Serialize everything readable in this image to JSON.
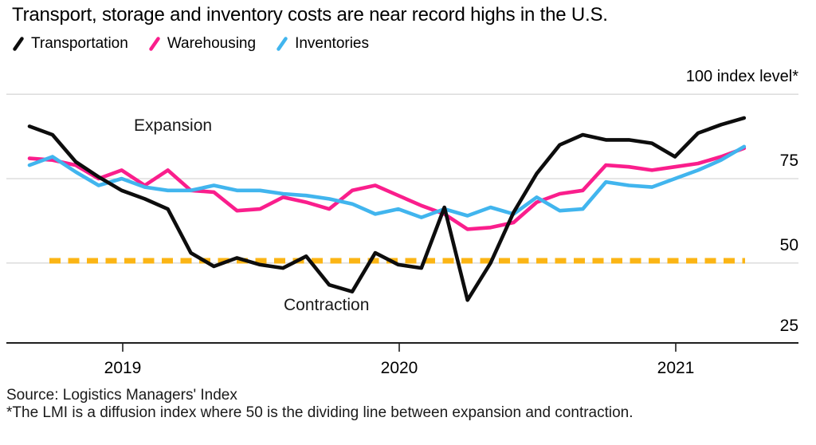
{
  "header": {
    "title": "Transport, storage and inventory costs are near record highs in the U.S."
  },
  "legend": [
    {
      "label": "Transportation",
      "color": "#0d0d0d"
    },
    {
      "label": "Warehousing",
      "color": "#fa1e8c"
    },
    {
      "label": "Inventories",
      "color": "#41b5ee"
    }
  ],
  "axis": {
    "unit_label": "100 index level*",
    "y_ticks": [
      "75",
      "50",
      "25"
    ],
    "x_ticks": [
      "2019",
      "2020",
      "2021"
    ]
  },
  "annotations": {
    "expansion": "Expansion",
    "contraction": "Contraction"
  },
  "footer": {
    "source": "Source: Logistics Managers' Index",
    "footnote": "*The LMI is a diffusion index where 50 is the dividing line between expansion and contraction."
  },
  "chart_data": {
    "type": "line",
    "title": "Transport, storage and inventory costs are near record highs in the U.S.",
    "unit": "index level (diffusion index, 50 = neutral)",
    "x_frequency": "monthly",
    "categories": [
      "2018-09",
      "2018-10",
      "2018-11",
      "2018-12",
      "2019-01",
      "2019-02",
      "2019-03",
      "2019-04",
      "2019-05",
      "2019-06",
      "2019-07",
      "2019-08",
      "2019-09",
      "2019-10",
      "2019-11",
      "2019-12",
      "2020-01",
      "2020-02",
      "2020-03",
      "2020-04",
      "2020-05",
      "2020-06",
      "2020-07",
      "2020-08",
      "2020-09",
      "2020-10",
      "2020-11",
      "2020-12",
      "2021-01",
      "2021-02",
      "2021-03",
      "2021-04"
    ],
    "series": [
      {
        "name": "Transportation",
        "color": "#0d0d0d",
        "values": [
          90.5,
          88,
          80,
          75.5,
          71.5,
          69,
          66,
          53,
          49,
          51.5,
          49.5,
          48.5,
          52,
          43.5,
          41.5,
          53,
          49.5,
          48.5,
          66.5,
          39,
          50,
          65,
          76.5,
          85,
          88,
          86.5,
          86.5,
          85.5,
          81.5,
          88.5,
          91,
          93
        ]
      },
      {
        "name": "Warehousing",
        "color": "#fa1e8c",
        "values": [
          81,
          80.5,
          79,
          75,
          77.5,
          73,
          77.5,
          71.5,
          71,
          65.5,
          66,
          69.5,
          68,
          66,
          71.5,
          73,
          70,
          67,
          64.5,
          60,
          60.5,
          62,
          68,
          70.5,
          71.5,
          79,
          78.5,
          77.5,
          78.5,
          79.5,
          81.5,
          84
        ]
      },
      {
        "name": "Inventories",
        "color": "#41b5ee",
        "values": [
          79,
          81.5,
          77,
          73,
          75,
          72.5,
          71.5,
          71.5,
          73,
          71.5,
          71.5,
          70.5,
          70,
          69,
          67.5,
          64.5,
          66,
          63.5,
          66,
          64,
          66.5,
          64.5,
          69.5,
          65.5,
          66,
          74,
          73,
          72.5,
          75,
          77.5,
          80.5,
          84.5
        ]
      }
    ],
    "reference_line": {
      "value": 50,
      "style": "dashed",
      "color": "#fbb515",
      "meaning": "dividing line between expansion and contraction"
    },
    "region_labels": [
      "Expansion",
      "Contraction"
    ],
    "yticks": [
      25,
      50,
      75,
      100
    ],
    "ylim": [
      25,
      100
    ],
    "xtick_labels": [
      "2019",
      "2020",
      "2021"
    ],
    "grid": "horizontal",
    "legend_position": "top-left"
  }
}
